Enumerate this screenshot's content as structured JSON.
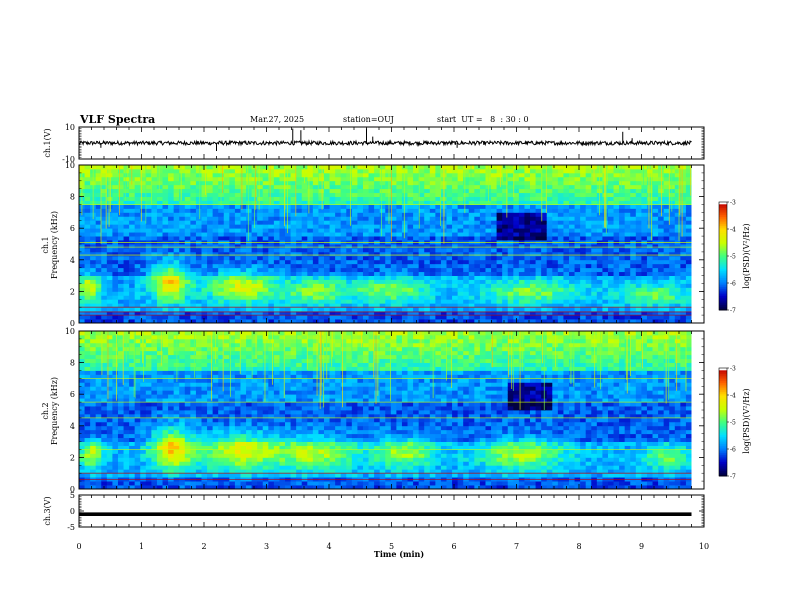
{
  "header": {
    "title": "VLF Spectra",
    "date": "Mar.27, 2025",
    "station": "station=OUJ",
    "start_ut": "start  UT =   8  : 30 : 0"
  },
  "colors": {
    "background": "#ffffff",
    "axis": "#000000",
    "spectrogram_floor": "#000a5a",
    "colormap": [
      "#000040",
      "#0000c8",
      "#0080ff",
      "#00e0ff",
      "#40ff80",
      "#c8ff00",
      "#ffe000",
      "#ff6000",
      "#c00000",
      "#ffffff"
    ]
  },
  "chart_data": [
    {
      "id": "ch1_waveform",
      "type": "line",
      "ylabel": "ch.1(V)",
      "ylim": [
        -10,
        10
      ],
      "yticks": [
        "10",
        "-10"
      ],
      "xlim": [
        0,
        10
      ],
      "baseline": 0,
      "spikes": [
        {
          "t": 0.35,
          "v": -3
        },
        {
          "t": 2.2,
          "v": -5
        },
        {
          "t": 3.42,
          "v": 9
        },
        {
          "t": 3.55,
          "v": 8
        },
        {
          "t": 4.6,
          "v": 9
        },
        {
          "t": 4.7,
          "v": 4
        },
        {
          "t": 6.05,
          "v": -3
        },
        {
          "t": 8.7,
          "v": 7
        },
        {
          "t": 8.85,
          "v": 3
        }
      ]
    },
    {
      "id": "ch1_spectrogram",
      "type": "heatmap",
      "ylabel_top": "ch.1",
      "ylabel": "Frequency (kHz)",
      "ylim": [
        0,
        10
      ],
      "yticks": [
        "0",
        "2",
        "4",
        "6",
        "8",
        "10"
      ],
      "xlim": [
        0,
        10
      ],
      "colorbar": {
        "label": "log(PSD)(V²/Hz)",
        "range": [
          -7,
          -3
        ],
        "ticks": [
          "-3",
          "-4",
          "-5",
          "-6",
          "-7"
        ]
      },
      "emissions": [
        {
          "t": 0.15,
          "f": 2.2,
          "dt": 0.2,
          "df": 0.9,
          "level": 0.8
        },
        {
          "t": 1.45,
          "f": 2.6,
          "dt": 0.3,
          "df": 1.2,
          "level": 1.0
        },
        {
          "t": 2.6,
          "f": 2.3,
          "dt": 0.55,
          "df": 1.0,
          "level": 0.8
        },
        {
          "t": 3.8,
          "f": 2.0,
          "dt": 0.5,
          "df": 0.8,
          "level": 0.6
        },
        {
          "t": 5.0,
          "f": 2.1,
          "dt": 0.6,
          "df": 0.8,
          "level": 0.6
        },
        {
          "t": 7.2,
          "f": 2.0,
          "dt": 0.8,
          "df": 0.8,
          "level": 0.55
        },
        {
          "t": 9.2,
          "f": 1.8,
          "dt": 0.6,
          "df": 0.7,
          "level": 0.5
        }
      ],
      "dark_regions": [
        {
          "t0": 6.7,
          "t1": 7.5,
          "f0": 5.2,
          "f1": 7.0
        }
      ],
      "lines_khz": [
        0.5,
        0.7,
        1.0,
        4.3,
        4.8,
        5.1,
        7.5
      ]
    },
    {
      "id": "ch2_spectrogram",
      "type": "heatmap",
      "ylabel_top": "ch.2",
      "ylabel": "Frequency (kHz)",
      "ylim": [
        0,
        10
      ],
      "yticks": [
        "0",
        "2",
        "4",
        "6",
        "8",
        "10"
      ],
      "xlim": [
        0,
        10
      ],
      "colorbar": {
        "label": "log(PSD)(V²/Hz)",
        "range": [
          -7,
          -3
        ],
        "ticks": [
          "-3",
          "-4",
          "-5",
          "-6",
          "-7"
        ]
      },
      "emissions": [
        {
          "t": 0.2,
          "f": 2.2,
          "dt": 0.2,
          "df": 0.9,
          "level": 0.75
        },
        {
          "t": 1.5,
          "f": 2.6,
          "dt": 0.35,
          "df": 1.3,
          "level": 1.0
        },
        {
          "t": 2.6,
          "f": 2.4,
          "dt": 0.6,
          "df": 1.2,
          "level": 0.85
        },
        {
          "t": 3.8,
          "f": 2.3,
          "dt": 0.6,
          "df": 1.1,
          "level": 0.7
        },
        {
          "t": 5.2,
          "f": 2.3,
          "dt": 0.5,
          "df": 1.0,
          "level": 0.65
        },
        {
          "t": 7.1,
          "f": 2.2,
          "dt": 0.7,
          "df": 1.0,
          "level": 0.65
        },
        {
          "t": 9.4,
          "f": 2.0,
          "dt": 0.4,
          "df": 0.8,
          "level": 0.5
        }
      ],
      "dark_regions": [
        {
          "t0": 6.9,
          "t1": 7.6,
          "f0": 5.0,
          "f1": 6.8
        }
      ],
      "lines_khz": [
        0.6,
        1.0,
        2.5,
        4.5,
        5.5,
        7.0
      ]
    },
    {
      "id": "ch3_waveform",
      "type": "line",
      "ylabel": "ch.3(V)",
      "ylim": [
        -5,
        5
      ],
      "yticks": [
        "5",
        "0",
        "-5"
      ],
      "xlim": [
        0,
        10
      ],
      "baseline": -1
    }
  ],
  "xaxis": {
    "label": "Time (min)",
    "ticks": [
      "0",
      "1",
      "2",
      "3",
      "4",
      "5",
      "6",
      "7",
      "8",
      "9",
      "10"
    ]
  }
}
